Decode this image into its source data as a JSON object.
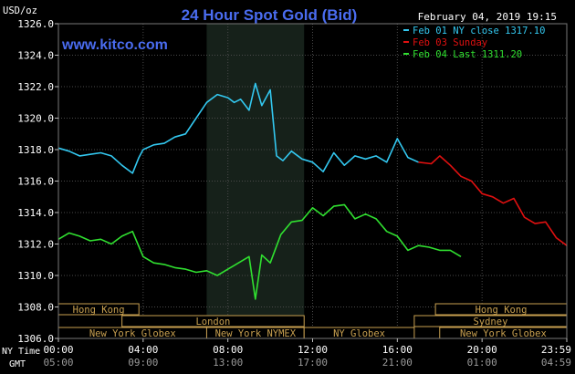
{
  "chart_data": {
    "type": "line",
    "title": "24 Hour Spot Gold (Bid)",
    "ylabel": "USD/oz",
    "site": "www.kitco.com",
    "timestamp": "February 04, 2019 19:15",
    "ylim": [
      1306,
      1326
    ],
    "yticks": [
      1306,
      1308,
      1310,
      1312,
      1314,
      1316,
      1318,
      1320,
      1322,
      1324,
      1326
    ],
    "ytick_labels": [
      "1306.0",
      "1308.0",
      "1310.0",
      "1312.0",
      "1314.0",
      "1316.0",
      "1318.0",
      "1320.0",
      "1322.0",
      "1324.0",
      "1326.0"
    ],
    "xlim": [
      0,
      24
    ],
    "x_ticks": [
      0,
      4,
      8,
      12,
      16,
      20,
      24
    ],
    "x_tick_labels_ny": [
      "00:00",
      "04:00",
      "08:00",
      "12:00",
      "16:00",
      "20:00",
      "23:59"
    ],
    "x_tick_labels_gmt": [
      "05:00",
      "09:00",
      "13:00",
      "17:00",
      "21:00",
      "01:00",
      "04:59"
    ],
    "x_row_labels": [
      "NY Time",
      "GMT"
    ],
    "grid": true,
    "legend_position": "top-right",
    "highlight_range": [
      7.0,
      11.6
    ],
    "sessions": [
      {
        "name": "Hong Kong",
        "start": 0.0,
        "end": 3.8,
        "row": 0
      },
      {
        "name": "Hong Kong",
        "start": 17.8,
        "end": 24.0,
        "row": 0
      },
      {
        "name": "London",
        "start": 3.0,
        "end": 11.6,
        "row": 1
      },
      {
        "name": "Sydney",
        "start": 16.8,
        "end": 24.0,
        "row": 1
      },
      {
        "name": "New York Globex",
        "start": 0.0,
        "end": 7.0,
        "row": 2
      },
      {
        "name": "New York NYMEX",
        "start": 7.0,
        "end": 11.6,
        "row": 2
      },
      {
        "name": "NY Globex",
        "start": 11.6,
        "end": 16.8,
        "row": 2
      },
      {
        "name": "New York Globex",
        "start": 18.0,
        "end": 24.0,
        "row": 2
      }
    ],
    "series": [
      {
        "name": "Feb 01 NY close 1317.10",
        "color": "#33c8f0",
        "x": [
          0,
          0.5,
          1,
          1.5,
          2,
          2.5,
          3,
          3.5,
          3.8,
          4,
          4.5,
          5,
          5.5,
          6,
          6.5,
          7,
          7.5,
          8,
          8.3,
          8.6,
          9,
          9.3,
          9.6,
          10,
          10.3,
          10.6,
          11,
          11.5,
          12,
          12.5,
          13,
          13.5,
          14,
          14.5,
          15,
          15.5,
          16,
          16.5,
          17
        ],
        "y": [
          1318.1,
          1317.9,
          1317.6,
          1317.7,
          1317.8,
          1317.6,
          1317.0,
          1316.5,
          1317.5,
          1318.0,
          1318.3,
          1318.4,
          1318.8,
          1319.0,
          1320.0,
          1321.0,
          1321.5,
          1321.3,
          1321.0,
          1321.2,
          1320.5,
          1322.2,
          1320.8,
          1321.8,
          1317.6,
          1317.3,
          1317.9,
          1317.4,
          1317.2,
          1316.6,
          1317.8,
          1317.0,
          1317.6,
          1317.4,
          1317.6,
          1317.2,
          1318.7,
          1317.5,
          1317.2
        ]
      },
      {
        "name": "Feb 03 Sunday",
        "color": "#e01010",
        "x": [
          17,
          17.6,
          18,
          18.5,
          19,
          19.5,
          20,
          20.5,
          21,
          21.5,
          22,
          22.5,
          23,
          23.5,
          24
        ],
        "y": [
          1317.2,
          1317.1,
          1317.6,
          1317.0,
          1316.3,
          1316.0,
          1315.2,
          1315.0,
          1314.6,
          1314.9,
          1313.7,
          1313.3,
          1313.4,
          1312.4,
          1311.9
        ]
      },
      {
        "name": "Feb 04 Last 1311.20",
        "color": "#30e030",
        "x": [
          0,
          0.5,
          1,
          1.5,
          2,
          2.5,
          3,
          3.5,
          4,
          4.5,
          5,
          5.5,
          6,
          6.5,
          7,
          7.5,
          8,
          8.5,
          9,
          9.3,
          9.6,
          10,
          10.5,
          11,
          11.5,
          12,
          12.5,
          13,
          13.5,
          14,
          14.5,
          15,
          15.5,
          16,
          16.5,
          17,
          17.5,
          18,
          18.5,
          19
        ],
        "y": [
          1312.3,
          1312.7,
          1312.5,
          1312.2,
          1312.3,
          1312.0,
          1312.5,
          1312.8,
          1311.2,
          1310.8,
          1310.7,
          1310.5,
          1310.4,
          1310.2,
          1310.3,
          1310.0,
          1310.4,
          1310.8,
          1311.2,
          1308.5,
          1311.3,
          1310.8,
          1312.6,
          1313.4,
          1313.5,
          1314.3,
          1313.8,
          1314.4,
          1314.5,
          1313.6,
          1313.9,
          1313.6,
          1312.8,
          1312.5,
          1311.6,
          1311.9,
          1311.8,
          1311.6,
          1311.6,
          1311.2
        ]
      }
    ]
  }
}
